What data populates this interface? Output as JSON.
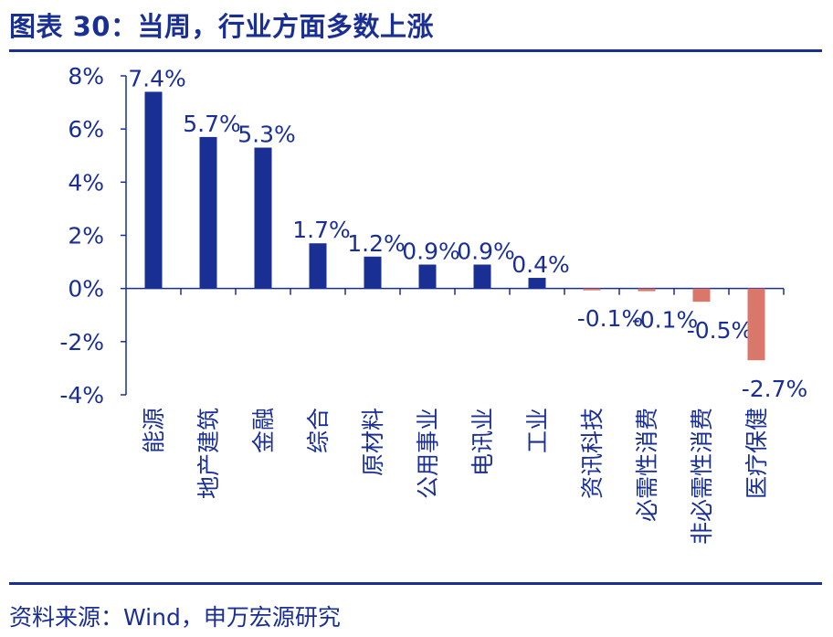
{
  "header": {
    "title": "图表 30：当周，行业方面多数上涨"
  },
  "footer": {
    "source": "资料来源：Wind，申万宏源研究"
  },
  "colors": {
    "positive": "#1a2f94",
    "negative": "#d9776b",
    "text": "#1a2f94",
    "axis": "#1a2f94"
  },
  "chart_data": {
    "type": "bar",
    "title": "当周，行业方面多数上涨",
    "xlabel": "",
    "ylabel": "",
    "ylim": [
      -4,
      8
    ],
    "yticks": [
      8,
      6,
      4,
      2,
      0,
      -2,
      -4
    ],
    "ytick_labels": [
      "8%",
      "6%",
      "4%",
      "2%",
      "0%",
      "-2%",
      "-4%"
    ],
    "grid": false,
    "categories": [
      "能源",
      "地产建筑",
      "金融",
      "综合",
      "原材料",
      "公用事业",
      "电讯业",
      "工业",
      "资讯科技",
      "必需性消费",
      "非必需性消费",
      "医疗保健"
    ],
    "values": [
      7.4,
      5.7,
      5.3,
      1.7,
      1.2,
      0.9,
      0.9,
      0.4,
      -0.05,
      -0.1,
      -0.5,
      -2.7
    ],
    "data_labels": [
      "7.4%",
      "5.7%",
      "5.3%",
      "1.7%",
      "1.2%",
      "0.9%",
      "0.9%",
      "0.4%",
      "-0.1%",
      "-0.1%",
      "-0.5%",
      "-2.7%"
    ]
  }
}
